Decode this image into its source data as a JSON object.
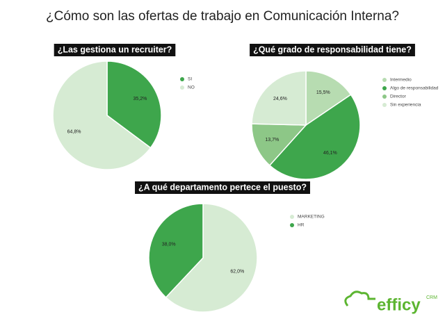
{
  "title": "¿Cómo son las ofertas de trabajo en Comunicación Interna?",
  "chart_data": [
    {
      "type": "pie",
      "title": "¿Las gestiona un recruiter?",
      "categories": [
        "SI",
        "NO"
      ],
      "values": [
        35.2,
        64.8
      ],
      "value_labels": [
        "35,2%",
        "64,8%"
      ],
      "colors": [
        "#3ea64c",
        "#d6ebd3"
      ]
    },
    {
      "type": "pie",
      "title": "¿Qué grado de responsabilidad tiene?",
      "categories": [
        "Intermedio",
        "Algo de responsabilidad",
        "Director",
        "Sin experiencia"
      ],
      "values": [
        15.5,
        46.1,
        13.7,
        24.6
      ],
      "value_labels": [
        "15,5%",
        "46,1%",
        "13,7%",
        "24,6%"
      ],
      "colors": [
        "#b7dcb1",
        "#3ea64c",
        "#8dc787",
        "#d6ebd3"
      ]
    },
    {
      "type": "pie",
      "title": "¿A qué departamento pertece el puesto?",
      "categories": [
        "MARKETING",
        "HR"
      ],
      "values": [
        62.0,
        38.0
      ],
      "value_labels": [
        "62,0%",
        "38,0%"
      ],
      "colors": [
        "#d6ebd3",
        "#3ea64c"
      ]
    }
  ],
  "logo": {
    "name": "efficy",
    "suffix": "CRM"
  }
}
